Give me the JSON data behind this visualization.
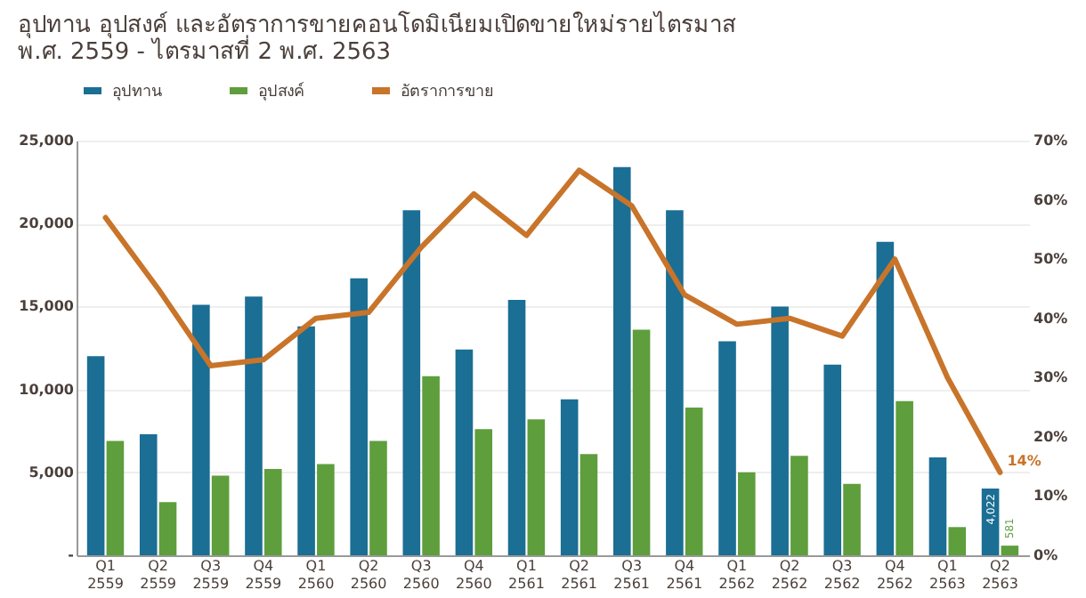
{
  "chart_data": {
    "type": "bar",
    "title": "อุปทาน อุปสงค์ และอัตราการขายคอนโดมิเนียมเปิดขายใหม่รายไตรมาส\nพ.ศ. 2559 - ไตรมาสที่ 2 พ.ศ. 2563",
    "categories": [
      "Q1 2559",
      "Q2 2559",
      "Q3 2559",
      "Q4 2559",
      "Q1 2560",
      "Q2 2560",
      "Q3 2560",
      "Q4 2560",
      "Q1 2561",
      "Q2 2561",
      "Q3 2561",
      "Q4 2561",
      "Q1 2562",
      "Q2 2562",
      "Q3 2562",
      "Q4 2562",
      "Q1 2563",
      "Q2 2563"
    ],
    "series": [
      {
        "name": "อุปทาน",
        "color": "#1b6e94",
        "values": [
          12000,
          7300,
          15100,
          15600,
          13800,
          16700,
          20800,
          12400,
          15400,
          9400,
          23400,
          20800,
          12900,
          15000,
          11500,
          18900,
          5900,
          4022
        ],
        "value_labels": [
          null,
          null,
          null,
          null,
          null,
          null,
          null,
          null,
          null,
          null,
          null,
          null,
          null,
          null,
          null,
          null,
          null,
          "4,022"
        ]
      },
      {
        "name": "อุปสงค์",
        "color": "#5e9e3c",
        "values": [
          6900,
          3200,
          4800,
          5200,
          5500,
          6900,
          10800,
          7600,
          8200,
          6100,
          13600,
          8900,
          5000,
          6000,
          4300,
          9300,
          1700,
          581
        ],
        "value_labels": [
          null,
          null,
          null,
          null,
          null,
          null,
          null,
          null,
          null,
          null,
          null,
          null,
          null,
          null,
          null,
          null,
          null,
          "581"
        ]
      },
      {
        "name": "อัตราการขาย",
        "color": "#c8742a",
        "type": "line",
        "axis": "y2",
        "values": [
          57,
          45,
          32,
          33,
          40,
          41,
          52,
          61,
          54,
          65,
          59,
          44,
          39,
          40,
          37,
          50,
          30,
          14
        ],
        "value_labels": [
          null,
          null,
          null,
          null,
          null,
          null,
          null,
          null,
          null,
          null,
          null,
          null,
          null,
          null,
          null,
          null,
          null,
          "14%"
        ]
      }
    ],
    "ylim": [
      0,
      25000
    ],
    "yticks": [
      {
        "value": 0,
        "label": "-"
      },
      {
        "value": 5000,
        "label": "5,000"
      },
      {
        "value": 10000,
        "label": "10,000"
      },
      {
        "value": 15000,
        "label": "15,000"
      },
      {
        "value": 20000,
        "label": "20,000"
      },
      {
        "value": 25000,
        "label": "25,000"
      }
    ],
    "y2lim": [
      0,
      70
    ],
    "y2ticks": [
      {
        "value": 0,
        "label": "0%"
      },
      {
        "value": 10,
        "label": "10%"
      },
      {
        "value": 20,
        "label": "20%"
      },
      {
        "value": 30,
        "label": "30%"
      },
      {
        "value": 40,
        "label": "40%"
      },
      {
        "value": 50,
        "label": "50%"
      },
      {
        "value": 60,
        "label": "60%"
      },
      {
        "value": 70,
        "label": "70%"
      }
    ],
    "grid": "y",
    "legend": "top",
    "line_style": "solid",
    "marker": "none"
  }
}
